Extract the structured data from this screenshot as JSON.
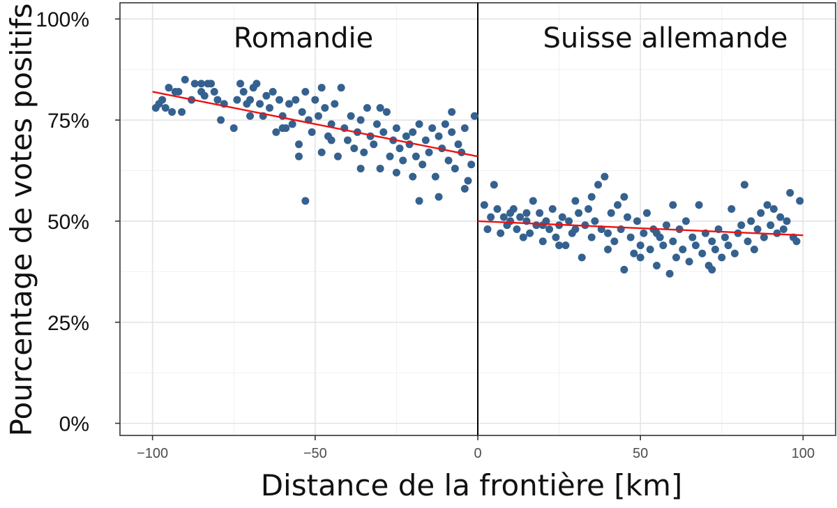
{
  "chart_data": {
    "type": "scatter",
    "xlabel": "Distance de la frontière [km]",
    "ylabel": "Pourcentage de votes positifs",
    "xlim": [
      -110,
      110
    ],
    "ylim": [
      -0.03,
      1.04
    ],
    "x_ticks": [
      -100,
      -50,
      0,
      50,
      100
    ],
    "x_tick_labels": [
      "−100",
      "−50",
      "0",
      "50",
      "100"
    ],
    "y_ticks": [
      0,
      0.25,
      0.5,
      0.75,
      1.0
    ],
    "y_tick_labels": [
      "0%",
      "25%",
      "50%",
      "75%",
      "100%"
    ],
    "grid": true,
    "threshold_x": 0,
    "annotations": [
      {
        "text": "Romandie",
        "x": -50,
        "y": 0.965
      },
      {
        "text": "Suisse allemande",
        "x": 58,
        "y": 0.965
      }
    ],
    "point_color": "#35618f",
    "fit_color": "#ee1111",
    "series": [
      {
        "region": "Romandie",
        "fit": {
          "x": [
            -100,
            0
          ],
          "y": [
            0.82,
            0.66
          ]
        },
        "points": [
          [
            -99,
            0.78
          ],
          [
            -98,
            0.79
          ],
          [
            -97,
            0.8
          ],
          [
            -96,
            0.78
          ],
          [
            -95,
            0.83
          ],
          [
            -94,
            0.77
          ],
          [
            -93,
            0.82
          ],
          [
            -92,
            0.82
          ],
          [
            -91,
            0.77
          ],
          [
            -90,
            0.85
          ],
          [
            -88,
            0.8
          ],
          [
            -87,
            0.84
          ],
          [
            -85,
            0.82
          ],
          [
            -84,
            0.81
          ],
          [
            -83,
            0.84
          ],
          [
            -82,
            0.84
          ],
          [
            -81,
            0.82
          ],
          [
            -80,
            0.8
          ],
          [
            -79,
            0.75
          ],
          [
            -78,
            0.79
          ],
          [
            -75,
            0.73
          ],
          [
            -74,
            0.8
          ],
          [
            -73,
            0.84
          ],
          [
            -72,
            0.82
          ],
          [
            -71,
            0.79
          ],
          [
            -70,
            0.8
          ],
          [
            -69,
            0.83
          ],
          [
            -68,
            0.84
          ],
          [
            -67,
            0.79
          ],
          [
            -66,
            0.76
          ],
          [
            -65,
            0.81
          ],
          [
            -64,
            0.78
          ],
          [
            -63,
            0.82
          ],
          [
            -62,
            0.72
          ],
          [
            -61,
            0.8
          ],
          [
            -60,
            0.76
          ],
          [
            -59,
            0.73
          ],
          [
            -58,
            0.79
          ],
          [
            -57,
            0.74
          ],
          [
            -56,
            0.8
          ],
          [
            -55,
            0.69
          ],
          [
            -54,
            0.77
          ],
          [
            -53,
            0.82
          ],
          [
            -52,
            0.75
          ],
          [
            -51,
            0.72
          ],
          [
            -50,
            0.8
          ],
          [
            -49,
            0.76
          ],
          [
            -48,
            0.67
          ],
          [
            -47,
            0.78
          ],
          [
            -46,
            0.71
          ],
          [
            -45,
            0.74
          ],
          [
            -44,
            0.79
          ],
          [
            -43,
            0.66
          ],
          [
            -42,
            0.83
          ],
          [
            -41,
            0.73
          ],
          [
            -40,
            0.7
          ],
          [
            -39,
            0.76
          ],
          [
            -38,
            0.68
          ],
          [
            -37,
            0.72
          ],
          [
            -36,
            0.75
          ],
          [
            -35,
            0.67
          ],
          [
            -34,
            0.78
          ],
          [
            -33,
            0.71
          ],
          [
            -32,
            0.69
          ],
          [
            -31,
            0.74
          ],
          [
            -30,
            0.63
          ],
          [
            -29,
            0.72
          ],
          [
            -28,
            0.77
          ],
          [
            -27,
            0.66
          ],
          [
            -26,
            0.7
          ],
          [
            -25,
            0.73
          ],
          [
            -24,
            0.68
          ],
          [
            -23,
            0.65
          ],
          [
            -22,
            0.71
          ],
          [
            -21,
            0.69
          ],
          [
            -20,
            0.72
          ],
          [
            -19,
            0.66
          ],
          [
            -18,
            0.74
          ],
          [
            -17,
            0.64
          ],
          [
            -16,
            0.7
          ],
          [
            -15,
            0.67
          ],
          [
            -14,
            0.73
          ],
          [
            -13,
            0.61
          ],
          [
            -12,
            0.71
          ],
          [
            -11,
            0.68
          ],
          [
            -10,
            0.74
          ],
          [
            -9,
            0.65
          ],
          [
            -8,
            0.72
          ],
          [
            -7,
            0.63
          ],
          [
            -6,
            0.69
          ],
          [
            -5,
            0.67
          ],
          [
            -4,
            0.73
          ],
          [
            -3,
            0.6
          ],
          [
            -2,
            0.64
          ],
          [
            -1,
            0.76
          ],
          [
            -30,
            0.78
          ],
          [
            -45,
            0.7
          ],
          [
            -55,
            0.66
          ],
          [
            -70,
            0.76
          ],
          [
            -85,
            0.84
          ],
          [
            -53,
            0.55
          ],
          [
            -18,
            0.55
          ],
          [
            -12,
            0.56
          ],
          [
            -4,
            0.58
          ],
          [
            -8,
            0.77
          ],
          [
            -20,
            0.61
          ],
          [
            -36,
            0.63
          ],
          [
            -60,
            0.73
          ],
          [
            -48,
            0.83
          ],
          [
            -25,
            0.62
          ]
        ]
      },
      {
        "region": "Suisse allemande",
        "fit": {
          "x": [
            0,
            100
          ],
          "y": [
            0.5,
            0.465
          ]
        },
        "points": [
          [
            2,
            0.54
          ],
          [
            3,
            0.48
          ],
          [
            4,
            0.51
          ],
          [
            5,
            0.59
          ],
          [
            6,
            0.53
          ],
          [
            7,
            0.47
          ],
          [
            8,
            0.51
          ],
          [
            9,
            0.49
          ],
          [
            10,
            0.5
          ],
          [
            11,
            0.53
          ],
          [
            12,
            0.48
          ],
          [
            13,
            0.51
          ],
          [
            14,
            0.46
          ],
          [
            15,
            0.5
          ],
          [
            16,
            0.47
          ],
          [
            17,
            0.55
          ],
          [
            18,
            0.49
          ],
          [
            19,
            0.52
          ],
          [
            20,
            0.45
          ],
          [
            21,
            0.5
          ],
          [
            22,
            0.48
          ],
          [
            23,
            0.53
          ],
          [
            24,
            0.46
          ],
          [
            25,
            0.49
          ],
          [
            26,
            0.51
          ],
          [
            27,
            0.44
          ],
          [
            28,
            0.5
          ],
          [
            29,
            0.47
          ],
          [
            30,
            0.55
          ],
          [
            31,
            0.52
          ],
          [
            32,
            0.41
          ],
          [
            33,
            0.49
          ],
          [
            34,
            0.53
          ],
          [
            35,
            0.46
          ],
          [
            36,
            0.5
          ],
          [
            37,
            0.59
          ],
          [
            38,
            0.48
          ],
          [
            39,
            0.61
          ],
          [
            40,
            0.47
          ],
          [
            41,
            0.52
          ],
          [
            42,
            0.45
          ],
          [
            43,
            0.54
          ],
          [
            44,
            0.48
          ],
          [
            45,
            0.38
          ],
          [
            46,
            0.51
          ],
          [
            47,
            0.46
          ],
          [
            48,
            0.42
          ],
          [
            49,
            0.5
          ],
          [
            50,
            0.44
          ],
          [
            51,
            0.47
          ],
          [
            52,
            0.52
          ],
          [
            53,
            0.43
          ],
          [
            54,
            0.48
          ],
          [
            55,
            0.39
          ],
          [
            56,
            0.46
          ],
          [
            57,
            0.44
          ],
          [
            58,
            0.49
          ],
          [
            59,
            0.37
          ],
          [
            60,
            0.45
          ],
          [
            61,
            0.41
          ],
          [
            62,
            0.48
          ],
          [
            63,
            0.43
          ],
          [
            64,
            0.5
          ],
          [
            65,
            0.4
          ],
          [
            66,
            0.46
          ],
          [
            67,
            0.44
          ],
          [
            68,
            0.54
          ],
          [
            69,
            0.42
          ],
          [
            70,
            0.47
          ],
          [
            71,
            0.39
          ],
          [
            72,
            0.45
          ],
          [
            73,
            0.43
          ],
          [
            74,
            0.48
          ],
          [
            75,
            0.41
          ],
          [
            76,
            0.46
          ],
          [
            77,
            0.44
          ],
          [
            78,
            0.53
          ],
          [
            79,
            0.42
          ],
          [
            80,
            0.47
          ],
          [
            81,
            0.49
          ],
          [
            82,
            0.59
          ],
          [
            83,
            0.45
          ],
          [
            84,
            0.5
          ],
          [
            85,
            0.43
          ],
          [
            86,
            0.48
          ],
          [
            87,
            0.52
          ],
          [
            88,
            0.46
          ],
          [
            89,
            0.54
          ],
          [
            90,
            0.49
          ],
          [
            91,
            0.53
          ],
          [
            92,
            0.47
          ],
          [
            93,
            0.51
          ],
          [
            94,
            0.48
          ],
          [
            95,
            0.5
          ],
          [
            96,
            0.57
          ],
          [
            97,
            0.46
          ],
          [
            98,
            0.45
          ],
          [
            99,
            0.55
          ],
          [
            60,
            0.54
          ],
          [
            45,
            0.56
          ],
          [
            35,
            0.56
          ],
          [
            25,
            0.44
          ],
          [
            15,
            0.52
          ],
          [
            55,
            0.47
          ],
          [
            72,
            0.38
          ],
          [
            40,
            0.43
          ],
          [
            50,
            0.41
          ],
          [
            30,
            0.48
          ],
          [
            20,
            0.49
          ],
          [
            10,
            0.52
          ]
        ]
      }
    ]
  }
}
